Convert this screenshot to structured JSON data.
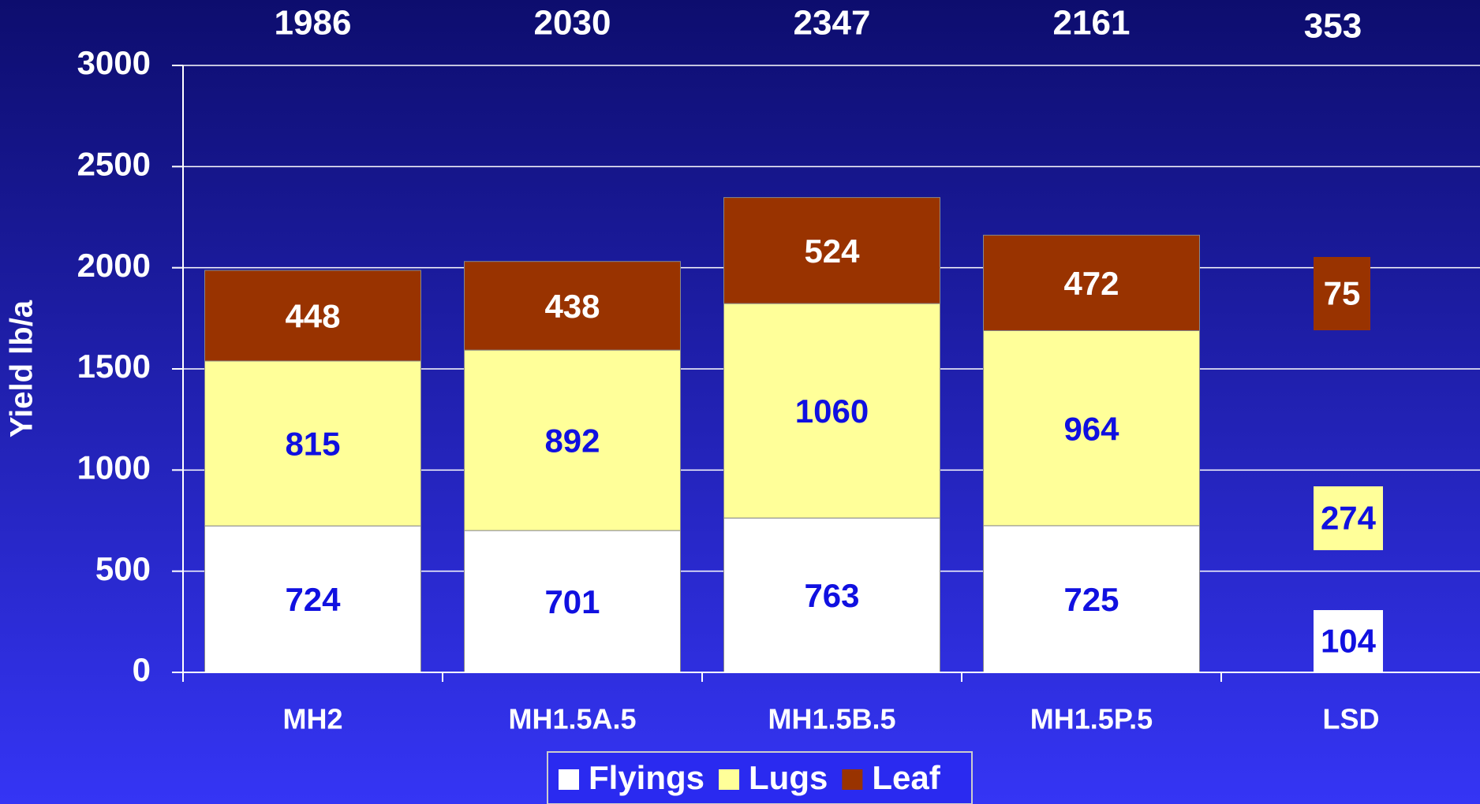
{
  "chart_data": {
    "type": "stacked_bar",
    "ylabel": "Yield lb/a",
    "categories": [
      "MH2",
      "MH1.5A.5",
      "MH1.5B.5",
      "MH1.5P.5"
    ],
    "series": [
      {
        "name": "Flyings",
        "color": "#ffffff",
        "label_color": "#1010e0",
        "values": [
          724,
          701,
          763,
          725
        ]
      },
      {
        "name": "Lugs",
        "color": "#ffff99",
        "label_color": "#1010e0",
        "values": [
          815,
          892,
          1060,
          964
        ]
      },
      {
        "name": "Leaf",
        "color": "#993300",
        "label_color": "#ffffff",
        "values": [
          448,
          438,
          524,
          472
        ]
      }
    ],
    "totals": [
      1986,
      2030,
      2347,
      2161
    ],
    "lsd": {
      "label": "LSD",
      "total": 353,
      "values": [
        104,
        274,
        75
      ]
    },
    "ylim": [
      0,
      3000
    ],
    "yticks": [
      0,
      500,
      1000,
      1500,
      2000,
      2500,
      3000
    ],
    "grid": true,
    "legend": "bottom"
  }
}
